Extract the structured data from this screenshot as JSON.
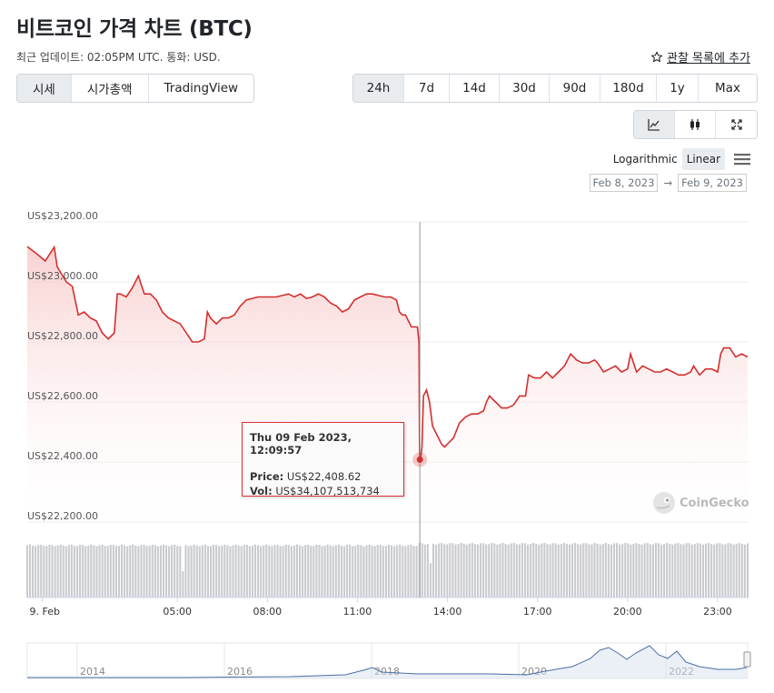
{
  "header": {
    "title": "비트코인 가격 차트 (BTC)",
    "subtitle": "최근 업데이트: 02:05PM UTC. 통화: USD.",
    "watchlist_label": "관찰 목록에 추가"
  },
  "tabs": [
    {
      "label": "시세",
      "active": true
    },
    {
      "label": "시가총액",
      "active": false
    },
    {
      "label": "TradingView",
      "active": false
    }
  ],
  "ranges": [
    {
      "label": "24h",
      "active": true
    },
    {
      "label": "7d",
      "active": false
    },
    {
      "label": "14d",
      "active": false
    },
    {
      "label": "30d",
      "active": false
    },
    {
      "label": "90d",
      "active": false
    },
    {
      "label": "180d",
      "active": false
    },
    {
      "label": "1y",
      "active": false
    },
    {
      "label": "Max",
      "active": false
    }
  ],
  "chart_types": [
    {
      "icon": "line-chart-icon",
      "active": true
    },
    {
      "icon": "candlestick-icon",
      "active": false
    },
    {
      "icon": "fullscreen-icon",
      "active": false
    }
  ],
  "scale": {
    "logarithmic_label": "Logarithmic",
    "linear_label": "Linear",
    "active": "linear"
  },
  "date_range": {
    "from": "Feb 8, 2023",
    "arrow": "→",
    "to": "Feb 9, 2023"
  },
  "tooltip": {
    "title": "Thu 09 Feb 2023, 12:09:57",
    "price_label": "Price:",
    "price_value": "US$22,408.62",
    "vol_label": "Vol:",
    "vol_value": "US$34,107,513,734"
  },
  "watermark": "CoinGecko",
  "colors": {
    "line": "#d32f2f",
    "fill_top": "#fbd4d4",
    "volume": "#c9cbcf",
    "navigator_line": "#4a6fa5"
  },
  "chart_data": {
    "type": "line",
    "title": "",
    "ylabel": "",
    "xlabel": "",
    "ylim": [
      22100,
      23200
    ],
    "y_ticks": [
      {
        "value": 23200,
        "label": "US$23,200.00"
      },
      {
        "value": 23000,
        "label": "US$23,000.00"
      },
      {
        "value": 22800,
        "label": "US$22,800.00"
      },
      {
        "value": 22600,
        "label": "US$22,600.00"
      },
      {
        "value": 22400,
        "label": "US$22,400.00"
      },
      {
        "value": 22200,
        "label": "US$22,200.00"
      }
    ],
    "x_ticks": [
      {
        "hour": 0.5,
        "label": "9. Feb"
      },
      {
        "hour": 5,
        "label": "05:00"
      },
      {
        "hour": 8,
        "label": "08:00"
      },
      {
        "hour": 11,
        "label": "11:00"
      },
      {
        "hour": 14,
        "label": "14:00"
      },
      {
        "hour": 17,
        "label": "17:00"
      },
      {
        "hour": 20,
        "label": "20:00"
      },
      {
        "hour": 23,
        "label": "23:00"
      }
    ],
    "xlim_hours": [
      0,
      24
    ],
    "series": [
      {
        "values": [
          [
            0.0,
            23118
          ],
          [
            0.3,
            23095
          ],
          [
            0.6,
            23070
          ],
          [
            0.9,
            23116
          ],
          [
            1.0,
            23050
          ],
          [
            1.3,
            23000
          ],
          [
            1.5,
            22985
          ],
          [
            1.7,
            22890
          ],
          [
            1.9,
            22900
          ],
          [
            2.1,
            22880
          ],
          [
            2.3,
            22870
          ],
          [
            2.5,
            22830
          ],
          [
            2.7,
            22810
          ],
          [
            2.9,
            22830
          ],
          [
            3.0,
            22960
          ],
          [
            3.1,
            22960
          ],
          [
            3.3,
            22950
          ],
          [
            3.5,
            22980
          ],
          [
            3.7,
            23020
          ],
          [
            3.9,
            22960
          ],
          [
            4.1,
            22960
          ],
          [
            4.3,
            22940
          ],
          [
            4.5,
            22900
          ],
          [
            4.7,
            22880
          ],
          [
            4.9,
            22870
          ],
          [
            5.1,
            22860
          ],
          [
            5.3,
            22830
          ],
          [
            5.5,
            22800
          ],
          [
            5.7,
            22800
          ],
          [
            5.9,
            22810
          ],
          [
            6.0,
            22900
          ],
          [
            6.1,
            22880
          ],
          [
            6.3,
            22860
          ],
          [
            6.5,
            22880
          ],
          [
            6.7,
            22880
          ],
          [
            6.9,
            22890
          ],
          [
            7.1,
            22920
          ],
          [
            7.3,
            22940
          ],
          [
            7.5,
            22945
          ],
          [
            7.7,
            22950
          ],
          [
            7.9,
            22950
          ],
          [
            8.1,
            22950
          ],
          [
            8.3,
            22950
          ],
          [
            8.5,
            22955
          ],
          [
            8.7,
            22960
          ],
          [
            8.9,
            22950
          ],
          [
            9.1,
            22960
          ],
          [
            9.3,
            22945
          ],
          [
            9.5,
            22950
          ],
          [
            9.7,
            22960
          ],
          [
            9.9,
            22950
          ],
          [
            10.1,
            22930
          ],
          [
            10.3,
            22920
          ],
          [
            10.5,
            22900
          ],
          [
            10.7,
            22910
          ],
          [
            10.9,
            22940
          ],
          [
            11.1,
            22950
          ],
          [
            11.3,
            22960
          ],
          [
            11.5,
            22960
          ],
          [
            11.7,
            22955
          ],
          [
            11.9,
            22950
          ],
          [
            12.1,
            22950
          ],
          [
            12.3,
            22940
          ],
          [
            12.4,
            22900
          ],
          [
            12.5,
            22890
          ],
          [
            12.6,
            22890
          ],
          [
            12.7,
            22870
          ],
          [
            12.8,
            22850
          ],
          [
            12.95,
            22850
          ],
          [
            13.0,
            22850
          ],
          [
            13.05,
            22800
          ],
          [
            13.07,
            22400
          ],
          [
            13.1,
            22408
          ],
          [
            13.15,
            22450
          ],
          [
            13.2,
            22620
          ],
          [
            13.3,
            22640
          ],
          [
            13.4,
            22600
          ],
          [
            13.5,
            22520
          ],
          [
            13.6,
            22500
          ],
          [
            13.7,
            22480
          ],
          [
            13.8,
            22460
          ],
          [
            13.9,
            22450
          ],
          [
            14.0,
            22460
          ],
          [
            14.2,
            22480
          ],
          [
            14.4,
            22530
          ],
          [
            14.6,
            22550
          ],
          [
            14.8,
            22560
          ],
          [
            15.0,
            22560
          ],
          [
            15.2,
            22570
          ],
          [
            15.3,
            22600
          ],
          [
            15.4,
            22620
          ],
          [
            15.5,
            22610
          ],
          [
            15.6,
            22600
          ],
          [
            15.8,
            22580
          ],
          [
            16.0,
            22580
          ],
          [
            16.2,
            22590
          ],
          [
            16.4,
            22620
          ],
          [
            16.6,
            22620
          ],
          [
            16.7,
            22690
          ],
          [
            16.9,
            22680
          ],
          [
            17.1,
            22680
          ],
          [
            17.3,
            22700
          ],
          [
            17.5,
            22680
          ],
          [
            17.7,
            22700
          ],
          [
            17.9,
            22720
          ],
          [
            18.1,
            22760
          ],
          [
            18.3,
            22740
          ],
          [
            18.5,
            22730
          ],
          [
            18.7,
            22730
          ],
          [
            18.9,
            22740
          ],
          [
            19.0,
            22730
          ],
          [
            19.2,
            22700
          ],
          [
            19.4,
            22710
          ],
          [
            19.6,
            22720
          ],
          [
            19.8,
            22700
          ],
          [
            20.0,
            22710
          ],
          [
            20.1,
            22760
          ],
          [
            20.3,
            22700
          ],
          [
            20.5,
            22720
          ],
          [
            20.7,
            22710
          ],
          [
            20.9,
            22700
          ],
          [
            21.1,
            22700
          ],
          [
            21.3,
            22710
          ],
          [
            21.5,
            22700
          ],
          [
            21.7,
            22690
          ],
          [
            21.9,
            22690
          ],
          [
            22.1,
            22700
          ],
          [
            22.2,
            22720
          ],
          [
            22.4,
            22690
          ],
          [
            22.6,
            22710
          ],
          [
            22.8,
            22710
          ],
          [
            23.0,
            22700
          ],
          [
            23.1,
            22760
          ],
          [
            23.2,
            22780
          ],
          [
            23.4,
            22780
          ],
          [
            23.6,
            22750
          ],
          [
            23.8,
            22760
          ],
          [
            24.0,
            22750
          ]
        ]
      }
    ],
    "volume_relative": 0.82,
    "navigator": {
      "years": [
        "2014",
        "2016",
        "2018",
        "2020",
        "2022"
      ]
    }
  }
}
